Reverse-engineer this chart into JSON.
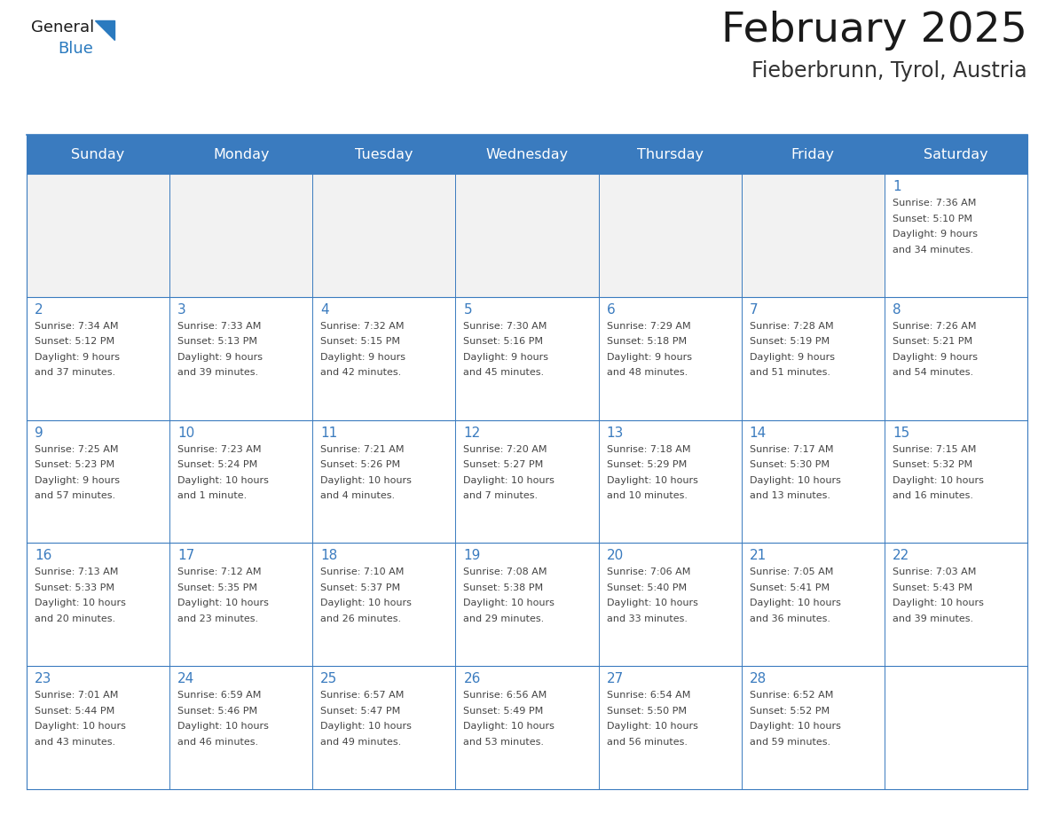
{
  "title": "February 2025",
  "subtitle": "Fieberbrunn, Tyrol, Austria",
  "header_bg": "#3a7bbf",
  "header_text": "#ffffff",
  "cell_bg": "#ffffff",
  "grid_line_color": "#3a7bbf",
  "title_color": "#1a1a1a",
  "subtitle_color": "#333333",
  "day_num_color": "#3a7bbf",
  "cell_text_color": "#444444",
  "logo_general_color": "#1a1a1a",
  "logo_blue_color": "#2a7abf",
  "day_headers": [
    "Sunday",
    "Monday",
    "Tuesday",
    "Wednesday",
    "Thursday",
    "Friday",
    "Saturday"
  ],
  "weeks": [
    [
      {
        "day": null,
        "info": ""
      },
      {
        "day": null,
        "info": ""
      },
      {
        "day": null,
        "info": ""
      },
      {
        "day": null,
        "info": ""
      },
      {
        "day": null,
        "info": ""
      },
      {
        "day": null,
        "info": ""
      },
      {
        "day": 1,
        "info": "Sunrise: 7:36 AM\nSunset: 5:10 PM\nDaylight: 9 hours\nand 34 minutes."
      }
    ],
    [
      {
        "day": 2,
        "info": "Sunrise: 7:34 AM\nSunset: 5:12 PM\nDaylight: 9 hours\nand 37 minutes."
      },
      {
        "day": 3,
        "info": "Sunrise: 7:33 AM\nSunset: 5:13 PM\nDaylight: 9 hours\nand 39 minutes."
      },
      {
        "day": 4,
        "info": "Sunrise: 7:32 AM\nSunset: 5:15 PM\nDaylight: 9 hours\nand 42 minutes."
      },
      {
        "day": 5,
        "info": "Sunrise: 7:30 AM\nSunset: 5:16 PM\nDaylight: 9 hours\nand 45 minutes."
      },
      {
        "day": 6,
        "info": "Sunrise: 7:29 AM\nSunset: 5:18 PM\nDaylight: 9 hours\nand 48 minutes."
      },
      {
        "day": 7,
        "info": "Sunrise: 7:28 AM\nSunset: 5:19 PM\nDaylight: 9 hours\nand 51 minutes."
      },
      {
        "day": 8,
        "info": "Sunrise: 7:26 AM\nSunset: 5:21 PM\nDaylight: 9 hours\nand 54 minutes."
      }
    ],
    [
      {
        "day": 9,
        "info": "Sunrise: 7:25 AM\nSunset: 5:23 PM\nDaylight: 9 hours\nand 57 minutes."
      },
      {
        "day": 10,
        "info": "Sunrise: 7:23 AM\nSunset: 5:24 PM\nDaylight: 10 hours\nand 1 minute."
      },
      {
        "day": 11,
        "info": "Sunrise: 7:21 AM\nSunset: 5:26 PM\nDaylight: 10 hours\nand 4 minutes."
      },
      {
        "day": 12,
        "info": "Sunrise: 7:20 AM\nSunset: 5:27 PM\nDaylight: 10 hours\nand 7 minutes."
      },
      {
        "day": 13,
        "info": "Sunrise: 7:18 AM\nSunset: 5:29 PM\nDaylight: 10 hours\nand 10 minutes."
      },
      {
        "day": 14,
        "info": "Sunrise: 7:17 AM\nSunset: 5:30 PM\nDaylight: 10 hours\nand 13 minutes."
      },
      {
        "day": 15,
        "info": "Sunrise: 7:15 AM\nSunset: 5:32 PM\nDaylight: 10 hours\nand 16 minutes."
      }
    ],
    [
      {
        "day": 16,
        "info": "Sunrise: 7:13 AM\nSunset: 5:33 PM\nDaylight: 10 hours\nand 20 minutes."
      },
      {
        "day": 17,
        "info": "Sunrise: 7:12 AM\nSunset: 5:35 PM\nDaylight: 10 hours\nand 23 minutes."
      },
      {
        "day": 18,
        "info": "Sunrise: 7:10 AM\nSunset: 5:37 PM\nDaylight: 10 hours\nand 26 minutes."
      },
      {
        "day": 19,
        "info": "Sunrise: 7:08 AM\nSunset: 5:38 PM\nDaylight: 10 hours\nand 29 minutes."
      },
      {
        "day": 20,
        "info": "Sunrise: 7:06 AM\nSunset: 5:40 PM\nDaylight: 10 hours\nand 33 minutes."
      },
      {
        "day": 21,
        "info": "Sunrise: 7:05 AM\nSunset: 5:41 PM\nDaylight: 10 hours\nand 36 minutes."
      },
      {
        "day": 22,
        "info": "Sunrise: 7:03 AM\nSunset: 5:43 PM\nDaylight: 10 hours\nand 39 minutes."
      }
    ],
    [
      {
        "day": 23,
        "info": "Sunrise: 7:01 AM\nSunset: 5:44 PM\nDaylight: 10 hours\nand 43 minutes."
      },
      {
        "day": 24,
        "info": "Sunrise: 6:59 AM\nSunset: 5:46 PM\nDaylight: 10 hours\nand 46 minutes."
      },
      {
        "day": 25,
        "info": "Sunrise: 6:57 AM\nSunset: 5:47 PM\nDaylight: 10 hours\nand 49 minutes."
      },
      {
        "day": 26,
        "info": "Sunrise: 6:56 AM\nSunset: 5:49 PM\nDaylight: 10 hours\nand 53 minutes."
      },
      {
        "day": 27,
        "info": "Sunrise: 6:54 AM\nSunset: 5:50 PM\nDaylight: 10 hours\nand 56 minutes."
      },
      {
        "day": 28,
        "info": "Sunrise: 6:52 AM\nSunset: 5:52 PM\nDaylight: 10 hours\nand 59 minutes."
      },
      {
        "day": null,
        "info": ""
      }
    ]
  ]
}
